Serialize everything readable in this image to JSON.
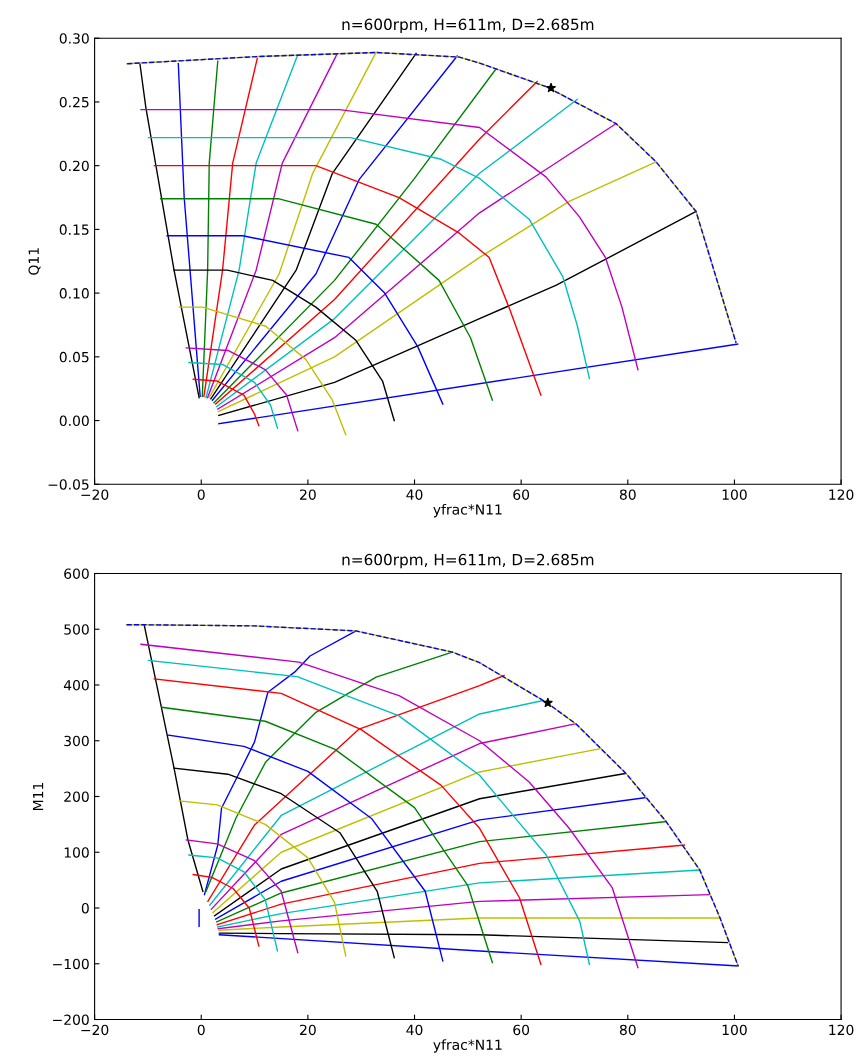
{
  "chart_data": [
    {
      "type": "line",
      "title": "n=600rpm, H=611m, D=2.685m",
      "xlabel": "yfrac*N11",
      "ylabel": "Q11",
      "xlim": [
        -20,
        120
      ],
      "ylim": [
        -0.05,
        0.3
      ],
      "xticks": [
        {
          "value": -20,
          "label": "−20"
        },
        0,
        20,
        40,
        60,
        80,
        100,
        120
      ],
      "yticks": [
        {
          "value": -0.05,
          "label": "−0.05"
        },
        {
          "value": 0.0,
          "label": "0.00"
        },
        {
          "value": 0.05,
          "label": "0.05"
        },
        {
          "value": 0.1,
          "label": "0.10"
        },
        {
          "value": 0.15,
          "label": "0.15"
        },
        {
          "value": 0.2,
          "label": "0.20"
        },
        {
          "value": 0.25,
          "label": "0.25"
        },
        {
          "value": 0.3,
          "label": "0.30"
        }
      ],
      "series": [
        {
          "color": "#000000",
          "x": [
            -0.4,
            -5.1,
            -10.4,
            -11.5
          ],
          "values": [
            0.018,
            0.118,
            0.246,
            0.28
          ]
        },
        {
          "color": "#0000ff",
          "x": [
            -0.2,
            -2.1,
            -3.2,
            -4.3
          ],
          "values": [
            0.019,
            0.118,
            0.175,
            0.28
          ]
        },
        {
          "color": "#008000",
          "x": [
            0.2,
            1.2,
            1.5,
            3.1
          ],
          "values": [
            0.019,
            0.118,
            0.202,
            0.282
          ]
        },
        {
          "color": "#ff0000",
          "x": [
            0.5,
            4.0,
            5.9,
            10.5
          ],
          "values": [
            0.019,
            0.118,
            0.202,
            0.284
          ]
        },
        {
          "color": "#00bfbf",
          "x": [
            0.9,
            7.1,
            10.3,
            18.0
          ],
          "values": [
            0.018,
            0.118,
            0.202,
            0.286
          ]
        },
        {
          "color": "#bf00bf",
          "x": [
            1.2,
            10.3,
            15.2,
            25.4
          ],
          "values": [
            0.018,
            0.118,
            0.202,
            0.287
          ]
        },
        {
          "color": "#bfbf00",
          "x": [
            1.5,
            14.6,
            20.9,
            32.8
          ],
          "values": [
            0.018,
            0.115,
            0.194,
            0.289
          ]
        },
        {
          "color": "#000000",
          "x": [
            1.8,
            17.8,
            24.6,
            40.3
          ],
          "values": [
            0.017,
            0.118,
            0.194,
            0.288
          ]
        },
        {
          "color": "#0000ff",
          "x": [
            2.1,
            21.5,
            29.6,
            48.0
          ],
          "values": [
            0.016,
            0.115,
            0.189,
            0.286
          ]
        },
        {
          "color": "#008000",
          "x": [
            2.4,
            25,
            40,
            55.3
          ],
          "values": [
            0.014,
            0.11,
            0.19,
            0.276
          ]
        },
        {
          "color": "#ff0000",
          "x": [
            2.7,
            25,
            52.2,
            63
          ],
          "values": [
            0.013,
            0.095,
            0.221,
            0.266
          ]
        },
        {
          "color": "#00bfbf",
          "x": [
            2.9,
            25,
            52.2,
            70.5
          ],
          "values": [
            0.011,
            0.08,
            0.194,
            0.252
          ]
        },
        {
          "color": "#bf00bf",
          "x": [
            3.1,
            25,
            52.2,
            77.8
          ],
          "values": [
            0.009,
            0.065,
            0.163,
            0.233
          ]
        },
        {
          "color": "#bfbf00",
          "x": [
            3.2,
            25,
            52.2,
            69,
            85.3
          ],
          "values": [
            0.007,
            0.05,
            0.128,
            0.172,
            0.203
          ]
        },
        {
          "color": "#000000",
          "x": [
            3.3,
            25,
            52.2,
            66.5,
            92.8
          ],
          "values": [
            0.004,
            0.03,
            0.08,
            0.106,
            0.164
          ]
        },
        {
          "color": "#0000ff",
          "x": [
            3.3,
            100.6
          ],
          "values": [
            -0.0025,
            0.06
          ]
        },
        {
          "color": "#bf00bf",
          "x": [
            -11.3,
            25.9,
            52.2,
            64.7,
            70.9,
            75.8,
            78.9,
            81.9
          ],
          "values": [
            0.244,
            0.244,
            0.23,
            0.191,
            0.16,
            0.128,
            0.089,
            0.04
          ]
        },
        {
          "color": "#00bfbf",
          "x": [
            -9.9,
            28,
            45,
            52.2,
            61.5,
            67.8,
            70.5,
            72.8
          ],
          "values": [
            0.222,
            0.222,
            0.205,
            0.19,
            0.158,
            0.113,
            0.075,
            0.033
          ]
        },
        {
          "color": "#ff0000",
          "x": [
            -8.8,
            21.5,
            37.1,
            48.4,
            54,
            57.8,
            63.7
          ],
          "values": [
            0.2,
            0.2,
            0.175,
            0.147,
            0.128,
            0.088,
            0.02
          ]
        },
        {
          "color": "#008000",
          "x": [
            -7.6,
            14.6,
            32.8,
            44.6,
            50.5,
            54.6
          ],
          "values": [
            0.174,
            0.174,
            0.154,
            0.11,
            0.065,
            0.016
          ]
        },
        {
          "color": "#0000ff",
          "x": [
            -6.4,
            7.8,
            27.7,
            34.4,
            40.6,
            45.3
          ],
          "values": [
            0.145,
            0.145,
            0.128,
            0.1,
            0.058,
            0.013
          ]
        },
        {
          "color": "#000000",
          "x": [
            -5.1,
            4.9,
            13.4,
            21.5,
            29,
            34,
            36.2
          ],
          "values": [
            0.118,
            0.118,
            0.11,
            0.089,
            0.063,
            0.031,
            0.0
          ]
        },
        {
          "color": "#bfbf00",
          "x": [
            -4.1,
            0.25,
            12.1,
            19.6,
            24.6,
            27.1
          ],
          "values": [
            0.089,
            0.089,
            0.074,
            0.048,
            0.016,
            -0.011
          ]
        },
        {
          "color": "#bf00bf",
          "x": [
            -2.8,
            5,
            12,
            16,
            18.1
          ],
          "values": [
            0.057,
            0.055,
            0.04,
            0.02,
            -0.008
          ]
        },
        {
          "color": "#00bfbf",
          "x": [
            -2.3,
            4,
            10,
            13,
            14.3
          ],
          "values": [
            0.0455,
            0.044,
            0.03,
            0.012,
            -0.006
          ]
        },
        {
          "color": "#ff0000",
          "x": [
            -1.5,
            3,
            8,
            10,
            10.8
          ],
          "values": [
            0.0324,
            0.031,
            0.02,
            0.005,
            -0.004
          ]
        },
        {
          "color": "#bfbf00",
          "x": [
            -13.9,
            10.9,
            32.8,
            48.4,
            52.2,
            64.7,
            77.8,
            85.3,
            92.8,
            100.3
          ],
          "values": [
            0.28,
            0.2857,
            0.2888,
            0.2852,
            0.2805,
            0.262,
            0.233,
            0.203,
            0.164,
            0.061
          ]
        },
        {
          "color": "#0000ff",
          "line_style": "dashed",
          "x": [
            -13.9,
            10.9,
            32.8,
            48.4,
            52.2,
            64.7,
            77.8,
            85.3,
            92.8,
            100.3
          ],
          "values": [
            0.28,
            0.2857,
            0.2888,
            0.2852,
            0.2805,
            0.262,
            0.233,
            0.203,
            0.164,
            0.061
          ]
        },
        {
          "type": "scatter",
          "marker": "star",
          "color": "#000000",
          "x": [
            65.6
          ],
          "values": [
            0.261
          ]
        }
      ]
    },
    {
      "type": "line",
      "title": "n=600rpm, H=611m, D=2.685m",
      "xlabel": "yfrac*N11",
      "ylabel": "M11",
      "xlim": [
        -20,
        120
      ],
      "ylim": [
        -200,
        600
      ],
      "xticks": [
        {
          "value": -20,
          "label": "−20"
        },
        0,
        20,
        40,
        60,
        80,
        100,
        120
      ],
      "yticks": [
        {
          "value": -200,
          "label": "−200"
        },
        {
          "value": -100,
          "label": "−100"
        },
        0,
        100,
        200,
        300,
        400,
        500,
        600
      ],
      "series": [
        {
          "color": "#000000",
          "x": [
            0.3,
            -2.5,
            -5.1,
            -10.7
          ],
          "values": [
            30,
            122,
            251,
            508
          ]
        },
        {
          "color": "#0000ff",
          "x": [
            0.6,
            3.1,
            3.8,
            6.9,
            10.0,
            12.5,
            17.5,
            20.4,
            29
          ],
          "values": [
            24,
            113,
            179,
            238,
            298,
            387,
            423,
            452,
            497
          ]
        },
        {
          "color": "#008000",
          "x": [
            0.9,
            6.5,
            12.1,
            21.5,
            32.8,
            47.1
          ],
          "values": [
            30,
            161,
            262,
            351,
            414,
            459
          ]
        },
        {
          "color": "#ff0000",
          "x": [
            1.25,
            10,
            29.6,
            52.2,
            56.8
          ],
          "values": [
            12,
            149,
            321,
            399,
            417
          ]
        },
        {
          "color": "#00bfbf",
          "x": [
            1.6,
            15,
            52.2,
            64
          ],
          "values": [
            5,
            166,
            348,
            372
          ]
        },
        {
          "color": "#bf00bf",
          "x": [
            1.9,
            15,
            52.2,
            70
          ],
          "values": [
            -2,
            132,
            295,
            330
          ]
        },
        {
          "color": "#bfbf00",
          "x": [
            2.2,
            15,
            52.2,
            75
          ],
          "values": [
            -8,
            100,
            244,
            286
          ]
        },
        {
          "color": "#000000",
          "x": [
            2.5,
            15,
            52.2,
            79.4
          ],
          "values": [
            -14,
            70,
            196,
            241
          ]
        },
        {
          "color": "#0000ff",
          "x": [
            2.7,
            15,
            52.2,
            83.4
          ],
          "values": [
            -20,
            48,
            158,
            198
          ]
        },
        {
          "color": "#008000",
          "x": [
            2.9,
            15,
            52.2,
            87.2
          ],
          "values": [
            -25,
            27,
            119,
            155
          ]
        },
        {
          "color": "#ff0000",
          "x": [
            3.0,
            15,
            52.2,
            90.6
          ],
          "values": [
            -30,
            7,
            80,
            113
          ]
        },
        {
          "color": "#00bfbf",
          "x": [
            3.1,
            15,
            52.2,
            93.5
          ],
          "values": [
            -34,
            -10,
            45,
            68
          ]
        },
        {
          "color": "#bf00bf",
          "x": [
            3.2,
            15,
            52.2,
            95.3
          ],
          "values": [
            -37,
            -23,
            12,
            24
          ]
        },
        {
          "color": "#bfbf00",
          "x": [
            3.3,
            15,
            52.2,
            97.3
          ],
          "values": [
            -40,
            -34,
            -18,
            -18
          ]
        },
        {
          "color": "#000000",
          "x": [
            3.4,
            15,
            52.2,
            98.7
          ],
          "values": [
            -45,
            -46,
            -48,
            -62
          ]
        },
        {
          "color": "#0000ff",
          "x": [
            3.4,
            52.2,
            100.7
          ],
          "values": [
            -48,
            -77,
            -104
          ]
        },
        {
          "color": "#bf00bf",
          "x": [
            -11.3,
            18.3,
            37.1,
            52.2,
            61.5,
            69,
            77.1,
            81.9
          ],
          "values": [
            473,
            441,
            381,
            300,
            226,
            143,
            36,
            -107
          ]
        },
        {
          "color": "#00bfbf",
          "x": [
            -9.9,
            18,
            37,
            52.2,
            58.4,
            64.7,
            71,
            72.8
          ],
          "values": [
            444,
            415,
            345,
            238,
            167,
            95,
            -24,
            -101
          ]
        },
        {
          "color": "#ff0000",
          "x": [
            -8.8,
            15,
            30,
            45,
            52.2,
            59.7,
            63.7
          ],
          "values": [
            411,
            385,
            320,
            220,
            143,
            18,
            -101
          ]
        },
        {
          "color": "#008000",
          "x": [
            -7.4,
            12,
            25,
            40,
            50,
            54.6
          ],
          "values": [
            360,
            335,
            285,
            180,
            40,
            -98
          ]
        },
        {
          "color": "#0000ff",
          "x": [
            -6.1,
            8,
            20,
            32,
            42,
            45.3
          ],
          "values": [
            310,
            290,
            245,
            160,
            30,
            -95
          ]
        },
        {
          "color": "#000000",
          "x": [
            -5.1,
            5,
            15,
            26,
            33,
            36.2
          ],
          "values": [
            251,
            240,
            205,
            135,
            30,
            -89
          ]
        },
        {
          "color": "#bfbf00",
          "x": [
            -4.1,
            3,
            12,
            20,
            25,
            27.1
          ],
          "values": [
            192,
            185,
            150,
            90,
            10,
            -86
          ]
        },
        {
          "color": "#bf00bf",
          "x": [
            -2.8,
            3,
            10,
            15,
            18.1
          ],
          "values": [
            122,
            115,
            85,
            30,
            -80
          ]
        },
        {
          "color": "#00bfbf",
          "x": [
            -2.3,
            3,
            8,
            12,
            14.3
          ],
          "values": [
            95,
            90,
            65,
            15,
            -77
          ]
        },
        {
          "color": "#ff0000",
          "x": [
            -1.5,
            2,
            6,
            9,
            10.8
          ],
          "values": [
            60,
            55,
            35,
            0,
            -68
          ]
        },
        {
          "color": "#0000ff",
          "x": [
            -0.4,
            -0.4
          ],
          "values": [
            -3,
            -33
          ]
        },
        {
          "color": "#bfbf00",
          "x": [
            -14,
            -10.7,
            10,
            29,
            47.1,
            52.2,
            64.7,
            70.3,
            79.7,
            87.2,
            93.5,
            97.3,
            100.7
          ],
          "values": [
            508,
            508,
            506,
            497,
            459,
            440,
            369,
            330,
            241,
            155,
            68,
            -18,
            -104
          ]
        },
        {
          "color": "#0000ff",
          "line_style": "dashed",
          "x": [
            -14,
            -10.7,
            10,
            29,
            47.1,
            52.2,
            64.7,
            70.3,
            79.7,
            87.2,
            93.5,
            97.3,
            100.7
          ],
          "values": [
            508,
            508,
            506,
            497,
            459,
            440,
            369,
            330,
            241,
            155,
            68,
            -18,
            -104
          ]
        },
        {
          "type": "scatter",
          "marker": "star",
          "color": "#000000",
          "x": [
            65
          ],
          "values": [
            368
          ]
        }
      ]
    }
  ]
}
